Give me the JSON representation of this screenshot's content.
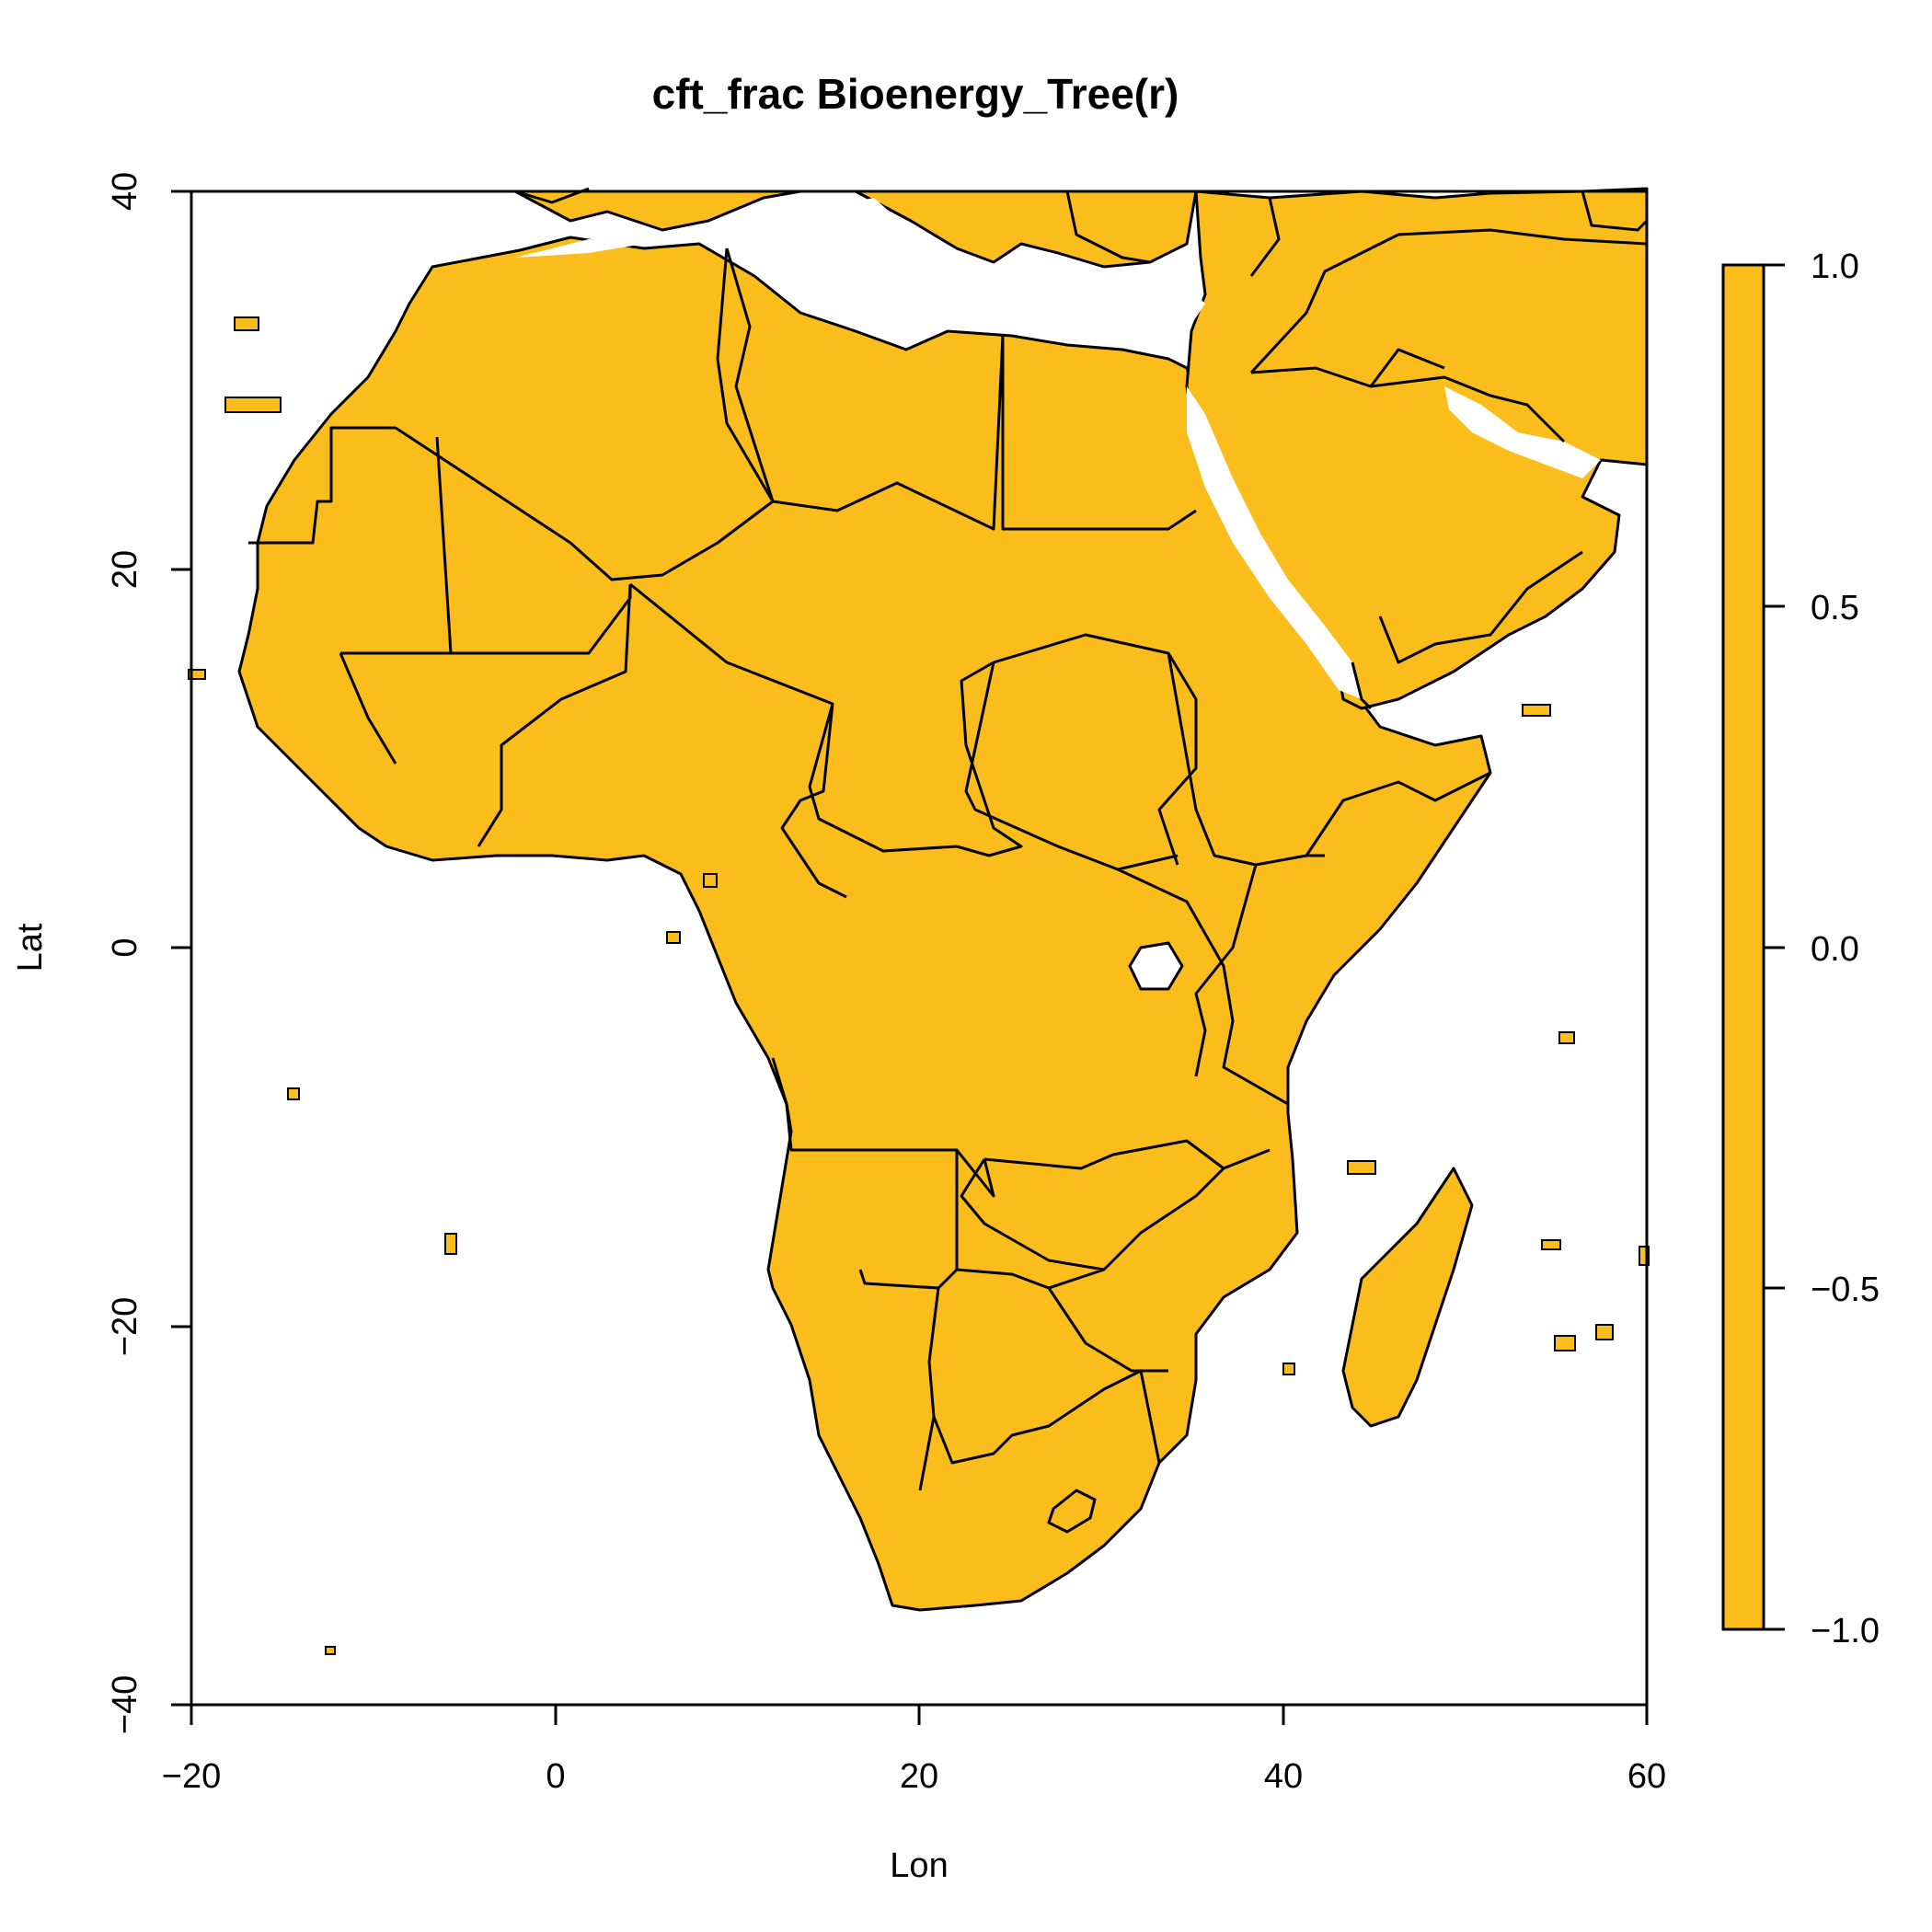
{
  "title": "cft_frac Bioenergy_Tree(r)",
  "xlabel": "Lon",
  "ylabel": "Lat",
  "x_ticks": [
    "−20",
    "0",
    "20",
    "40",
    "60"
  ],
  "y_ticks": [
    "−40",
    "−20",
    "0",
    "20",
    "40"
  ],
  "legend_ticks": [
    "1.0",
    "0.5",
    "0.0",
    "−0.5",
    "−1.0"
  ],
  "fill_color": "#FBBD1C",
  "border_color": "#000000",
  "chart_data": {
    "type": "heatmap",
    "variable": "cft_frac Bioenergy_Tree(r)",
    "xlim": [
      -20,
      60
    ],
    "ylim": [
      -40,
      40
    ],
    "x_ticks": [
      -20,
      0,
      20,
      40,
      60
    ],
    "y_ticks": [
      -40,
      -20,
      0,
      20,
      40
    ],
    "colorbar": {
      "range": [
        -1.0,
        1.0
      ],
      "ticks": [
        1.0,
        0.5,
        0.0,
        -0.5,
        -1.0
      ],
      "position": "right"
    },
    "land_value_color": "#FBBD1C",
    "ocean": "no data (white)",
    "features": [
      "country borders"
    ]
  }
}
